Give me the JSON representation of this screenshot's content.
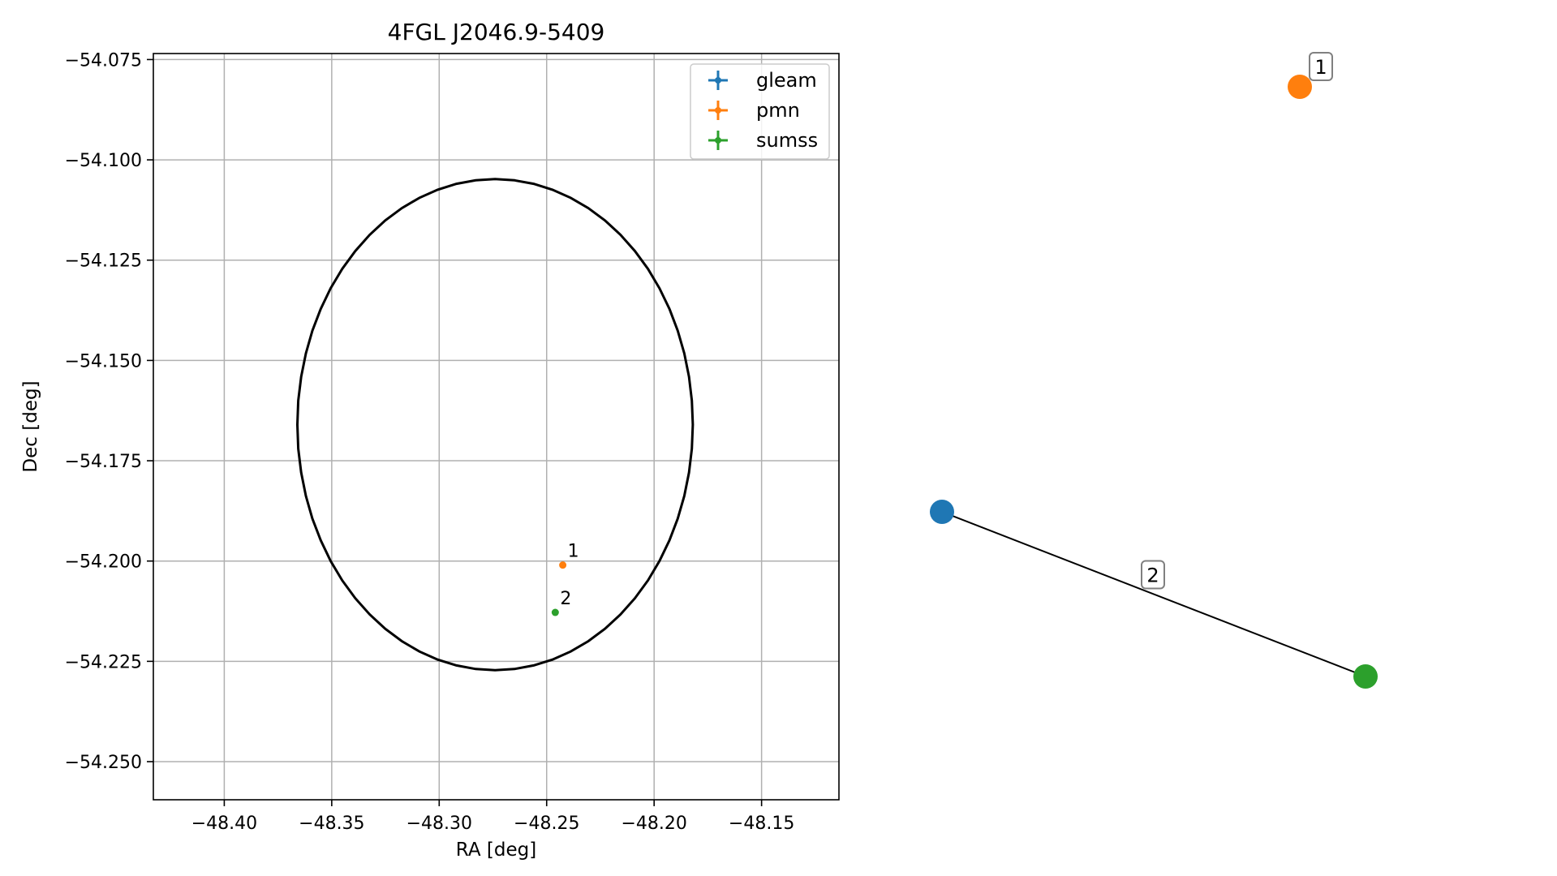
{
  "chart_data": [
    {
      "type": "scatter",
      "title": "4FGL J2046.9-5409",
      "xlabel": "RA [deg]",
      "ylabel": "Dec [deg]",
      "xlim": [
        -48.433,
        -48.114
      ],
      "ylim": [
        -54.2595,
        -54.0735
      ],
      "xticks": [
        -48.4,
        -48.35,
        -48.3,
        -48.25,
        -48.2,
        -48.15
      ],
      "xtick_labels": [
        "−48.40",
        "−48.35",
        "−48.30",
        "−48.25",
        "−48.20",
        "−48.15"
      ],
      "yticks": [
        -54.075,
        -54.1,
        -54.125,
        -54.15,
        -54.175,
        -54.2,
        -54.225,
        -54.25
      ],
      "ytick_labels": [
        "−54.075",
        "−54.100",
        "−54.125",
        "−54.150",
        "−54.175",
        "−54.200",
        "−54.225",
        "−54.250"
      ],
      "grid": true,
      "legend_position": "top-right",
      "ellipse": {
        "center": [
          -48.274,
          -54.166
        ],
        "ra_halfwidth": 0.092,
        "dec_halfheight": 0.0612,
        "color": "#000000"
      },
      "series": [
        {
          "name": "gleam",
          "color": "#1f77b4",
          "points": []
        },
        {
          "name": "pmn",
          "color": "#ff7f0e",
          "points": [
            {
              "x": -48.2425,
              "y": -54.201,
              "label": "1"
            }
          ]
        },
        {
          "name": "sumss",
          "color": "#2ca02c",
          "points": [
            {
              "x": -48.246,
              "y": -54.2128,
              "label": "2"
            }
          ]
        }
      ]
    },
    {
      "type": "network",
      "nodes": [
        {
          "id": "gleam",
          "color": "#1f77b4"
        },
        {
          "id": "pmn",
          "color": "#ff7f0e",
          "label": "1"
        },
        {
          "id": "sumss",
          "color": "#2ca02c"
        }
      ],
      "edges": [
        {
          "source": "gleam",
          "target": "sumss",
          "label": "2"
        }
      ]
    }
  ]
}
